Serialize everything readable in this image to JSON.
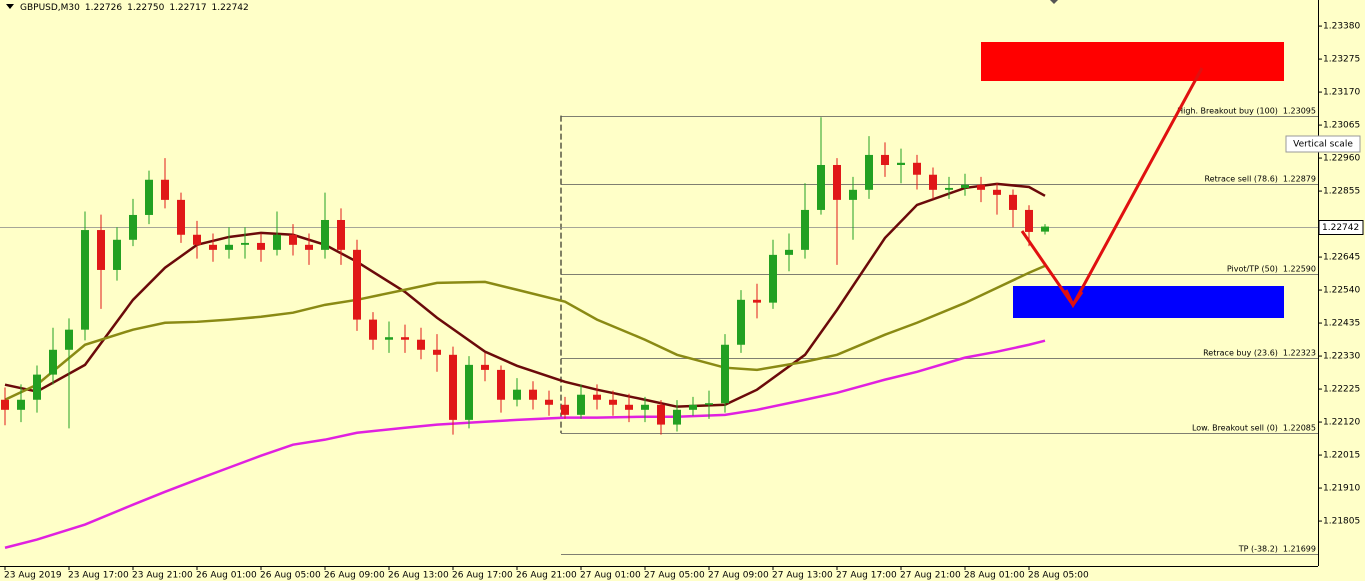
{
  "header": {
    "symbol": "GBPUSD,M30",
    "ohlc": [
      "1.22726",
      "1.22750",
      "1.22717",
      "1.22742"
    ]
  },
  "tooltip": "Vertical scale",
  "chart_data": {
    "type": "candlestick",
    "categories": [
      "23 Aug 2019",
      null,
      null,
      null,
      "23 Aug 17:00",
      null,
      null,
      null,
      "23 Aug 21:00",
      null,
      null,
      null,
      "26 Aug 01:00",
      null,
      null,
      null,
      "26 Aug 05:00",
      null,
      null,
      null,
      "26 Aug 09:00",
      null,
      null,
      null,
      "26 Aug 13:00",
      null,
      null,
      null,
      "26 Aug 17:00",
      null,
      null,
      null,
      "26 Aug 21:00",
      null,
      null,
      null,
      "27 Aug 01:00",
      null,
      null,
      null,
      "27 Aug 05:00",
      null,
      null,
      null,
      "27 Aug 09:00",
      null,
      null,
      null,
      "27 Aug 13:00",
      null,
      null,
      null,
      "27 Aug 17:00",
      null,
      null,
      null,
      "27 Aug 21:00",
      null,
      null,
      null,
      "28 Aug 01:00",
      null,
      null,
      null,
      "28 Aug 05:00",
      null
    ],
    "open": [
      1.22191,
      1.22159,
      1.22191,
      1.22271,
      1.2235,
      1.22414,
      1.22731,
      1.22604,
      1.227,
      1.22779,
      1.22891,
      1.22827,
      1.22716,
      1.22684,
      1.22668,
      1.22684,
      1.2269,
      1.22668,
      1.22716,
      1.22684,
      1.22668,
      1.22763,
      1.22668,
      1.22446,
      1.22382,
      1.2239,
      1.22382,
      1.2235,
      1.22334,
      1.22127,
      1.22302,
      1.22286,
      1.22191,
      1.22223,
      1.22191,
      1.22175,
      1.22143,
      1.22207,
      1.22191,
      1.22175,
      1.22159,
      1.22175,
      1.22112,
      1.22159,
      1.22175,
      1.2218,
      1.22366,
      1.22509,
      1.225,
      1.22652,
      1.22668,
      1.22795,
      1.22938,
      1.22827,
      1.22859,
      1.2297,
      1.22938,
      1.22945,
      1.22907,
      1.22859,
      1.22865,
      1.22875,
      1.22859,
      1.22843,
      1.22795,
      1.22726
    ],
    "high": [
      1.2223,
      1.2224,
      1.223,
      1.2242,
      1.2245,
      1.2279,
      1.2278,
      1.2274,
      1.2283,
      1.2292,
      1.2296,
      1.2285,
      1.2276,
      1.2272,
      1.2274,
      1.2274,
      1.2272,
      1.2279,
      1.2275,
      1.2272,
      1.2285,
      1.228,
      1.227,
      1.2247,
      1.2244,
      1.2243,
      1.2242,
      1.224,
      1.2236,
      1.2233,
      1.2234,
      1.223,
      1.2226,
      1.2225,
      1.2222,
      1.222,
      1.2224,
      1.2224,
      1.2222,
      1.2221,
      1.222,
      1.2219,
      1.2219,
      1.222,
      1.2222,
      1.224,
      1.2254,
      1.2256,
      1.227,
      1.2272,
      1.2288,
      1.2309,
      1.2296,
      1.229,
      1.2303,
      1.2301,
      1.2299,
      1.2297,
      1.2293,
      1.229,
      1.2291,
      1.229,
      1.2288,
      1.2286,
      1.2281,
      1.2275
    ],
    "low": [
      1.2211,
      1.2212,
      1.2215,
      1.2224,
      1.221,
      1.2238,
      1.2248,
      1.2257,
      1.2268,
      1.2275,
      1.228,
      1.2269,
      1.2264,
      1.2263,
      1.2264,
      1.2264,
      1.2263,
      1.2265,
      1.2265,
      1.2262,
      1.2264,
      1.2262,
      1.2241,
      1.2235,
      1.2234,
      1.2234,
      1.2232,
      1.2228,
      1.2208,
      1.221,
      1.2225,
      1.2215,
      1.2217,
      1.2216,
      1.2214,
      1.2213,
      1.2213,
      1.2216,
      1.2214,
      1.2212,
      1.2212,
      1.2208,
      1.2209,
      1.2214,
      1.2213,
      1.2215,
      1.2234,
      1.2245,
      1.2248,
      1.226,
      1.2264,
      1.2278,
      1.2262,
      1.227,
      1.2283,
      1.229,
      1.2288,
      1.2286,
      1.2283,
      1.2283,
      1.2284,
      1.2282,
      1.2278,
      1.2274,
      1.2268,
      1.22717
    ],
    "close": [
      1.22159,
      1.22191,
      1.22271,
      1.2235,
      1.22414,
      1.22731,
      1.22604,
      1.227,
      1.22779,
      1.22891,
      1.22827,
      1.22716,
      1.22684,
      1.22668,
      1.22684,
      1.2269,
      1.22668,
      1.22716,
      1.22684,
      1.22668,
      1.22763,
      1.22668,
      1.22446,
      1.22382,
      1.2239,
      1.22382,
      1.2235,
      1.22334,
      1.22127,
      1.22302,
      1.22286,
      1.22191,
      1.22223,
      1.22191,
      1.22175,
      1.22143,
      1.22207,
      1.22191,
      1.22175,
      1.22159,
      1.22175,
      1.22112,
      1.22159,
      1.22175,
      1.2218,
      1.22366,
      1.22509,
      1.225,
      1.22652,
      1.22668,
      1.22795,
      1.22938,
      1.22827,
      1.22859,
      1.2297,
      1.22938,
      1.22945,
      1.22907,
      1.22859,
      1.22865,
      1.22875,
      1.22859,
      1.22843,
      1.22795,
      1.22725,
      1.22742
    ],
    "up_color": "#22a022",
    "down_color": "#e01818",
    "ylim": [
      1.21662,
      1.23463
    ],
    "yticks": [
      {
        "value": 1.2338,
        "label": "1.23380"
      },
      1.23275,
      {
        "value": 1.2317,
        "label": "1.23170"
      },
      1.23065,
      {
        "value": 1.2296,
        "label": "1.22960"
      },
      1.22855,
      1.22645,
      {
        "value": 1.2254,
        "label": "1.22540"
      },
      1.22435,
      {
        "value": 1.2233,
        "label": "1.22330"
      },
      1.22225,
      {
        "value": 1.2212,
        "label": "1.22120"
      },
      1.22015,
      {
        "value": 1.2191,
        "label": "1.21910"
      },
      1.21805
    ],
    "indicators": [
      {
        "color": "#6b0a0a",
        "x": [
          0,
          2,
          5,
          8,
          10,
          12,
          14,
          16,
          18,
          20,
          22,
          25,
          27,
          30,
          32,
          35,
          37,
          40,
          42,
          45,
          47,
          50,
          52,
          55,
          57,
          60,
          62,
          64,
          65
        ],
        "values": [
          1.22239,
          1.22217,
          1.22302,
          1.22509,
          1.22611,
          1.22684,
          1.22709,
          1.22722,
          1.22716,
          1.22684,
          1.2263,
          1.22534,
          1.22452,
          1.22344,
          1.22299,
          1.22248,
          1.22223,
          1.22191,
          1.22169,
          1.22175,
          1.22223,
          1.22334,
          1.22477,
          1.22706,
          1.22811,
          1.22865,
          1.22878,
          1.22868,
          1.2284
        ]
      },
      {
        "color": "#8a8a14",
        "x": [
          0,
          2,
          5,
          8,
          10,
          12,
          14,
          16,
          18,
          20,
          22,
          25,
          27,
          30,
          32,
          35,
          37,
          40,
          42,
          45,
          47,
          50,
          52,
          55,
          57,
          60,
          62,
          64,
          65
        ],
        "values": [
          1.22191,
          1.22239,
          1.22366,
          1.22414,
          1.22436,
          1.22439,
          1.22446,
          1.22455,
          1.22468,
          1.22493,
          1.22509,
          1.22541,
          1.22563,
          1.22566,
          1.22541,
          1.22503,
          1.22446,
          1.22382,
          1.22334,
          1.22293,
          1.22286,
          1.22312,
          1.22334,
          1.22398,
          1.22436,
          1.22499,
          1.22547,
          1.22595,
          1.22617
        ]
      },
      {
        "color": "#e020e0",
        "x": [
          0,
          2,
          5,
          8,
          10,
          12,
          14,
          16,
          18,
          20,
          22,
          25,
          27,
          30,
          32,
          35,
          37,
          40,
          42,
          45,
          47,
          50,
          52,
          55,
          57,
          60,
          62,
          64,
          65
        ],
        "values": [
          1.2172,
          1.21746,
          1.21794,
          1.21857,
          1.21898,
          1.21937,
          1.21975,
          1.22013,
          1.22048,
          1.22064,
          1.22086,
          1.22102,
          1.22112,
          1.22121,
          1.22127,
          1.22134,
          1.22134,
          1.22137,
          1.22137,
          1.22143,
          1.22159,
          1.22191,
          1.22213,
          1.22255,
          1.2228,
          1.22325,
          1.22344,
          1.22366,
          1.22379
        ]
      }
    ],
    "levels": {
      "names": [
        "High. Breakout buy (100)",
        "Retrace sell (78.6)",
        "Pivot/TP (50)",
        "Retrace buy (23.6)",
        "Low. Breakout sell (0)",
        "TP (-38.2)"
      ],
      "values": [
        1.23095,
        1.22879,
        1.2259,
        1.22323,
        1.22085,
        1.21699
      ],
      "value_labels": [
        "1.23095",
        "1.22879",
        "1.22590",
        "1.22323",
        "1.22085",
        "1.21699"
      ]
    }
  }
}
